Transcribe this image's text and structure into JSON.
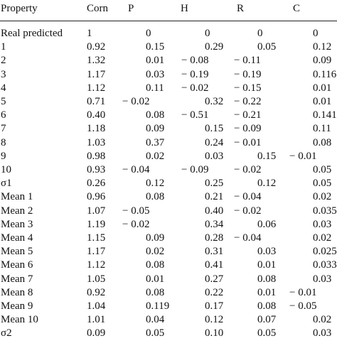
{
  "table": {
    "header": [
      "Property",
      "Corn",
      "P",
      "H",
      "R",
      "C"
    ],
    "rows": [
      [
        "Real predicted",
        "1",
        "0",
        "0",
        "0",
        "0"
      ],
      [
        "1",
        "0.92",
        "0.15",
        "0.29",
        "0.05",
        "0.12"
      ],
      [
        "2",
        "1.32",
        "0.01",
        "− 0.08",
        "− 0.11",
        "0.09"
      ],
      [
        "3",
        "1.17",
        "0.03",
        "− 0.19",
        "− 0.19",
        "0.116"
      ],
      [
        "4",
        "1.12",
        "0.11",
        "− 0.02",
        "− 0.15",
        "0.01"
      ],
      [
        "5",
        "0.71",
        "− 0.02",
        "0.32",
        "− 0.22",
        "0.01"
      ],
      [
        "6",
        "0.40",
        "0.08",
        "− 0.51",
        "− 0.21",
        "0.141"
      ],
      [
        "7",
        "1.18",
        "0.09",
        "0.15",
        "− 0.09",
        "0.11"
      ],
      [
        "8",
        "1.03",
        "0.37",
        "0.24",
        "− 0.01",
        "0.08"
      ],
      [
        "9",
        "0.98",
        "0.02",
        "0.03",
        "0.15",
        "− 0.01"
      ],
      [
        "10",
        "0.93",
        "− 0.04",
        "− 0.09",
        "− 0.02",
        "0.05"
      ],
      [
        "σ1",
        "0.26",
        "0.12",
        "0.25",
        "0.12",
        "0.05"
      ],
      [
        "Mean 1",
        "0.96",
        "0.08",
        "0.21",
        "− 0.04",
        "0.02"
      ],
      [
        "Mean 2",
        "1.07",
        "− 0.05",
        "0.40",
        "− 0.02",
        "0.035"
      ],
      [
        "Mean 3",
        "1.19",
        "− 0.02",
        "0.34",
        "0.06",
        "0.03"
      ],
      [
        "Mean 4",
        "1.15",
        "0.09",
        "0.28",
        "− 0.04",
        "0.02"
      ],
      [
        "Mean 5",
        "1.17",
        "0.02",
        "0.31",
        "0.03",
        "0.025"
      ],
      [
        "Mean 6",
        "1.12",
        "0.08",
        "0.41",
        "0.01",
        "0.033"
      ],
      [
        "Mean 7",
        "1.05",
        "0.01",
        "0.27",
        "0.08",
        "0.03"
      ],
      [
        "Mean 8",
        "0.92",
        "0.08",
        "0.22",
        "0.01",
        "− 0.01"
      ],
      [
        "Mean 9",
        "1.04",
        "0.119",
        "0.17",
        "0.08",
        "− 0.05"
      ],
      [
        "Mean 10",
        "1.01",
        "0.04",
        "0.12",
        "0.07",
        "0.02"
      ],
      [
        "σ2",
        "0.09",
        "0.05",
        "0.10",
        "0.05",
        "0.03"
      ]
    ]
  }
}
